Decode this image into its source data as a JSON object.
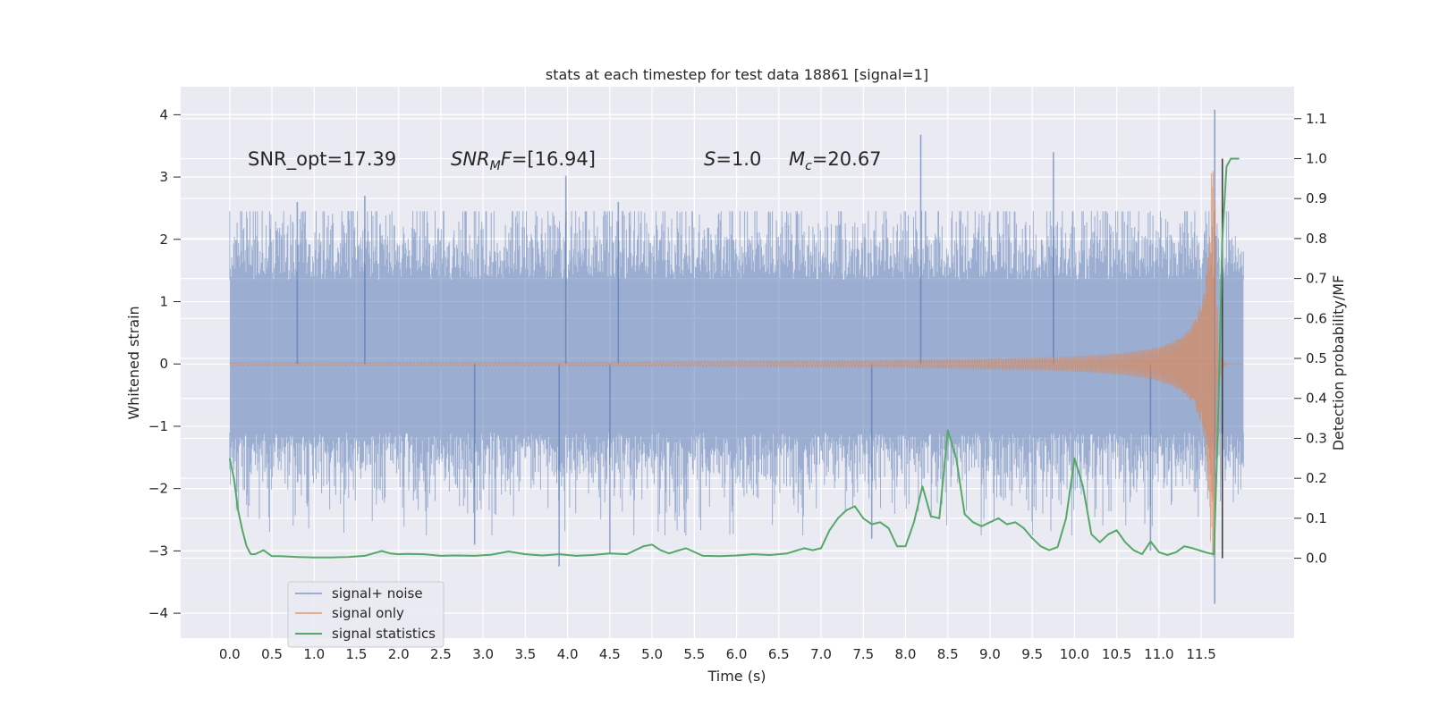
{
  "chart_data": {
    "type": "line",
    "title": "stats at each timestep for test data 18861 [signal=1]",
    "xlabel": "Time (s)",
    "ylabel_left": "Whitened strain",
    "ylabel_right": "Detection probability/MF",
    "xlim": [
      -0.58,
      12.6
    ],
    "ylim_left": [
      -4.4,
      4.45
    ],
    "ylim_right": [
      -0.2,
      1.18
    ],
    "x_ticks": [
      "0.0",
      "0.5",
      "1.0",
      "1.5",
      "2.0",
      "2.5",
      "3.0",
      "3.5",
      "4.0",
      "4.5",
      "5.0",
      "5.5",
      "6.0",
      "6.5",
      "7.0",
      "7.5",
      "8.0",
      "8.5",
      "9.0",
      "9.5",
      "10.0",
      "10.5",
      "11.0",
      "11.5"
    ],
    "y_ticks_left": [
      "4",
      "3",
      "2",
      "1",
      "0",
      "−1",
      "−2",
      "−3",
      "−4"
    ],
    "y_ticks_right": [
      "1.1",
      "1.0",
      "0.9",
      "0.8",
      "0.7",
      "0.6",
      "0.5",
      "0.4",
      "0.3",
      "0.2",
      "0.1",
      "0.0"
    ],
    "grid": true,
    "legend_position": "lower-left",
    "annotations": {
      "snr_opt": "SNR_opt=17.39",
      "snr_mf_name": "SNR",
      "snr_mf_sub": "M",
      "snr_mf_tail": "F",
      "snr_mf_value": "=[16.94]",
      "s_name": "S",
      "s_value": "=1.0",
      "mc_name": "M",
      "mc_sub": "c",
      "mc_value": "=20.67"
    },
    "series": [
      {
        "name": "signal+ noise",
        "color": "#4c72b0",
        "axis": "left",
        "t_start": 0.0,
        "t_end": 12.0,
        "typical_range": [
          -1.1,
          1.35
        ],
        "spikes": [
          {
            "t": 3.98,
            "y": 3.02
          },
          {
            "t": 8.18,
            "y": 3.68
          },
          {
            "t": 9.75,
            "y": 3.4
          },
          {
            "t": 11.66,
            "y": 4.08
          },
          {
            "t": 1.6,
            "y": 2.7
          },
          {
            "t": 0.8,
            "y": 2.6
          },
          {
            "t": 4.6,
            "y": 2.6
          },
          {
            "t": 3.9,
            "y": -3.25
          },
          {
            "t": 4.5,
            "y": -3.05
          },
          {
            "t": 11.66,
            "y": -3.85
          },
          {
            "t": 2.9,
            "y": -2.9
          },
          {
            "t": 7.6,
            "y": -2.8
          },
          {
            "t": 10.9,
            "y": -3.0
          }
        ]
      },
      {
        "name": "signal only",
        "color": "#dd8452",
        "axis": "left",
        "t_start": 0.0,
        "t_end": 12.0,
        "merger_time": 11.66,
        "peak_amplitude": 3.1
      },
      {
        "name": "signal statistics",
        "color": "#55a868",
        "axis": "right",
        "x": [
          0.0,
          0.05,
          0.1,
          0.15,
          0.2,
          0.25,
          0.3,
          0.4,
          0.5,
          0.6,
          0.8,
          1.0,
          1.2,
          1.4,
          1.6,
          1.7,
          1.8,
          1.9,
          2.0,
          2.1,
          2.3,
          2.5,
          2.7,
          2.9,
          3.1,
          3.3,
          3.5,
          3.7,
          3.9,
          4.1,
          4.3,
          4.5,
          4.7,
          4.9,
          5.0,
          5.1,
          5.2,
          5.4,
          5.6,
          5.8,
          6.0,
          6.2,
          6.4,
          6.6,
          6.8,
          6.9,
          7.0,
          7.1,
          7.2,
          7.3,
          7.4,
          7.5,
          7.6,
          7.7,
          7.8,
          7.9,
          8.0,
          8.1,
          8.2,
          8.3,
          8.4,
          8.5,
          8.6,
          8.7,
          8.8,
          8.9,
          9.0,
          9.1,
          9.2,
          9.3,
          9.4,
          9.5,
          9.6,
          9.7,
          9.8,
          9.9,
          10.0,
          10.1,
          10.2,
          10.3,
          10.4,
          10.5,
          10.6,
          10.7,
          10.8,
          10.9,
          11.0,
          11.1,
          11.2,
          11.3,
          11.4,
          11.5,
          11.6,
          11.65,
          11.7,
          11.75,
          11.8,
          11.85,
          11.9,
          11.95
        ],
        "y": [
          0.25,
          0.2,
          0.12,
          0.07,
          0.03,
          0.01,
          0.01,
          0.02,
          0.005,
          0.005,
          0.003,
          0.002,
          0.002,
          0.003,
          0.006,
          0.012,
          0.018,
          0.012,
          0.01,
          0.011,
          0.01,
          0.006,
          0.007,
          0.006,
          0.009,
          0.017,
          0.01,
          0.007,
          0.01,
          0.006,
          0.008,
          0.012,
          0.01,
          0.03,
          0.034,
          0.02,
          0.012,
          0.025,
          0.006,
          0.005,
          0.007,
          0.01,
          0.008,
          0.012,
          0.025,
          0.02,
          0.025,
          0.07,
          0.1,
          0.12,
          0.13,
          0.1,
          0.085,
          0.09,
          0.075,
          0.03,
          0.03,
          0.09,
          0.18,
          0.105,
          0.1,
          0.32,
          0.25,
          0.11,
          0.09,
          0.08,
          0.09,
          0.1,
          0.085,
          0.09,
          0.075,
          0.05,
          0.03,
          0.02,
          0.028,
          0.1,
          0.25,
          0.18,
          0.06,
          0.04,
          0.06,
          0.07,
          0.04,
          0.02,
          0.01,
          0.042,
          0.015,
          0.008,
          0.015,
          0.03,
          0.025,
          0.018,
          0.012,
          0.01,
          0.35,
          0.8,
          0.98,
          1.0,
          1.0,
          1.0
        ]
      }
    ],
    "vertical_marker": {
      "t": 11.75,
      "y_from": 0.0,
      "y_to": 1.0,
      "color": "#404040"
    }
  }
}
